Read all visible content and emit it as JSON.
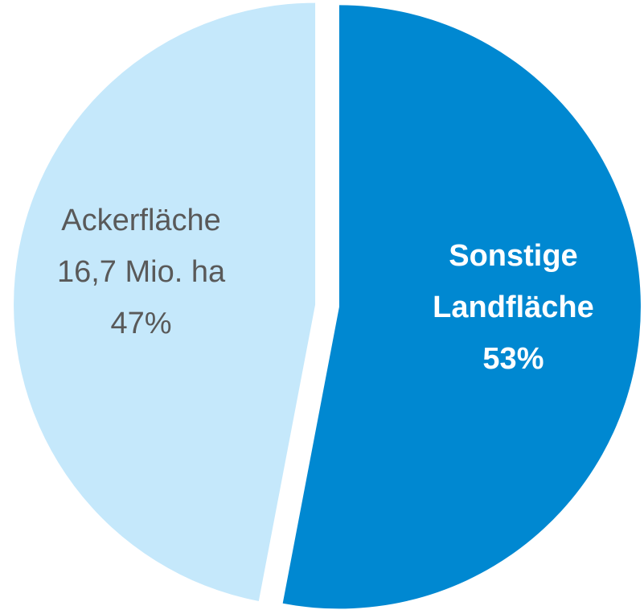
{
  "chart_data": {
    "type": "pie",
    "categories": [
      "Sonstige Landfläche",
      "Ackerfläche"
    ],
    "values": [
      53,
      47
    ],
    "value_labels": [
      "53%",
      "47%"
    ],
    "annotations": [
      "16,7 Mio. ha"
    ],
    "colors": [
      "#0088d1",
      "#c5e8fb"
    ],
    "label_colors": [
      "#ffffff",
      "#595959"
    ]
  }
}
